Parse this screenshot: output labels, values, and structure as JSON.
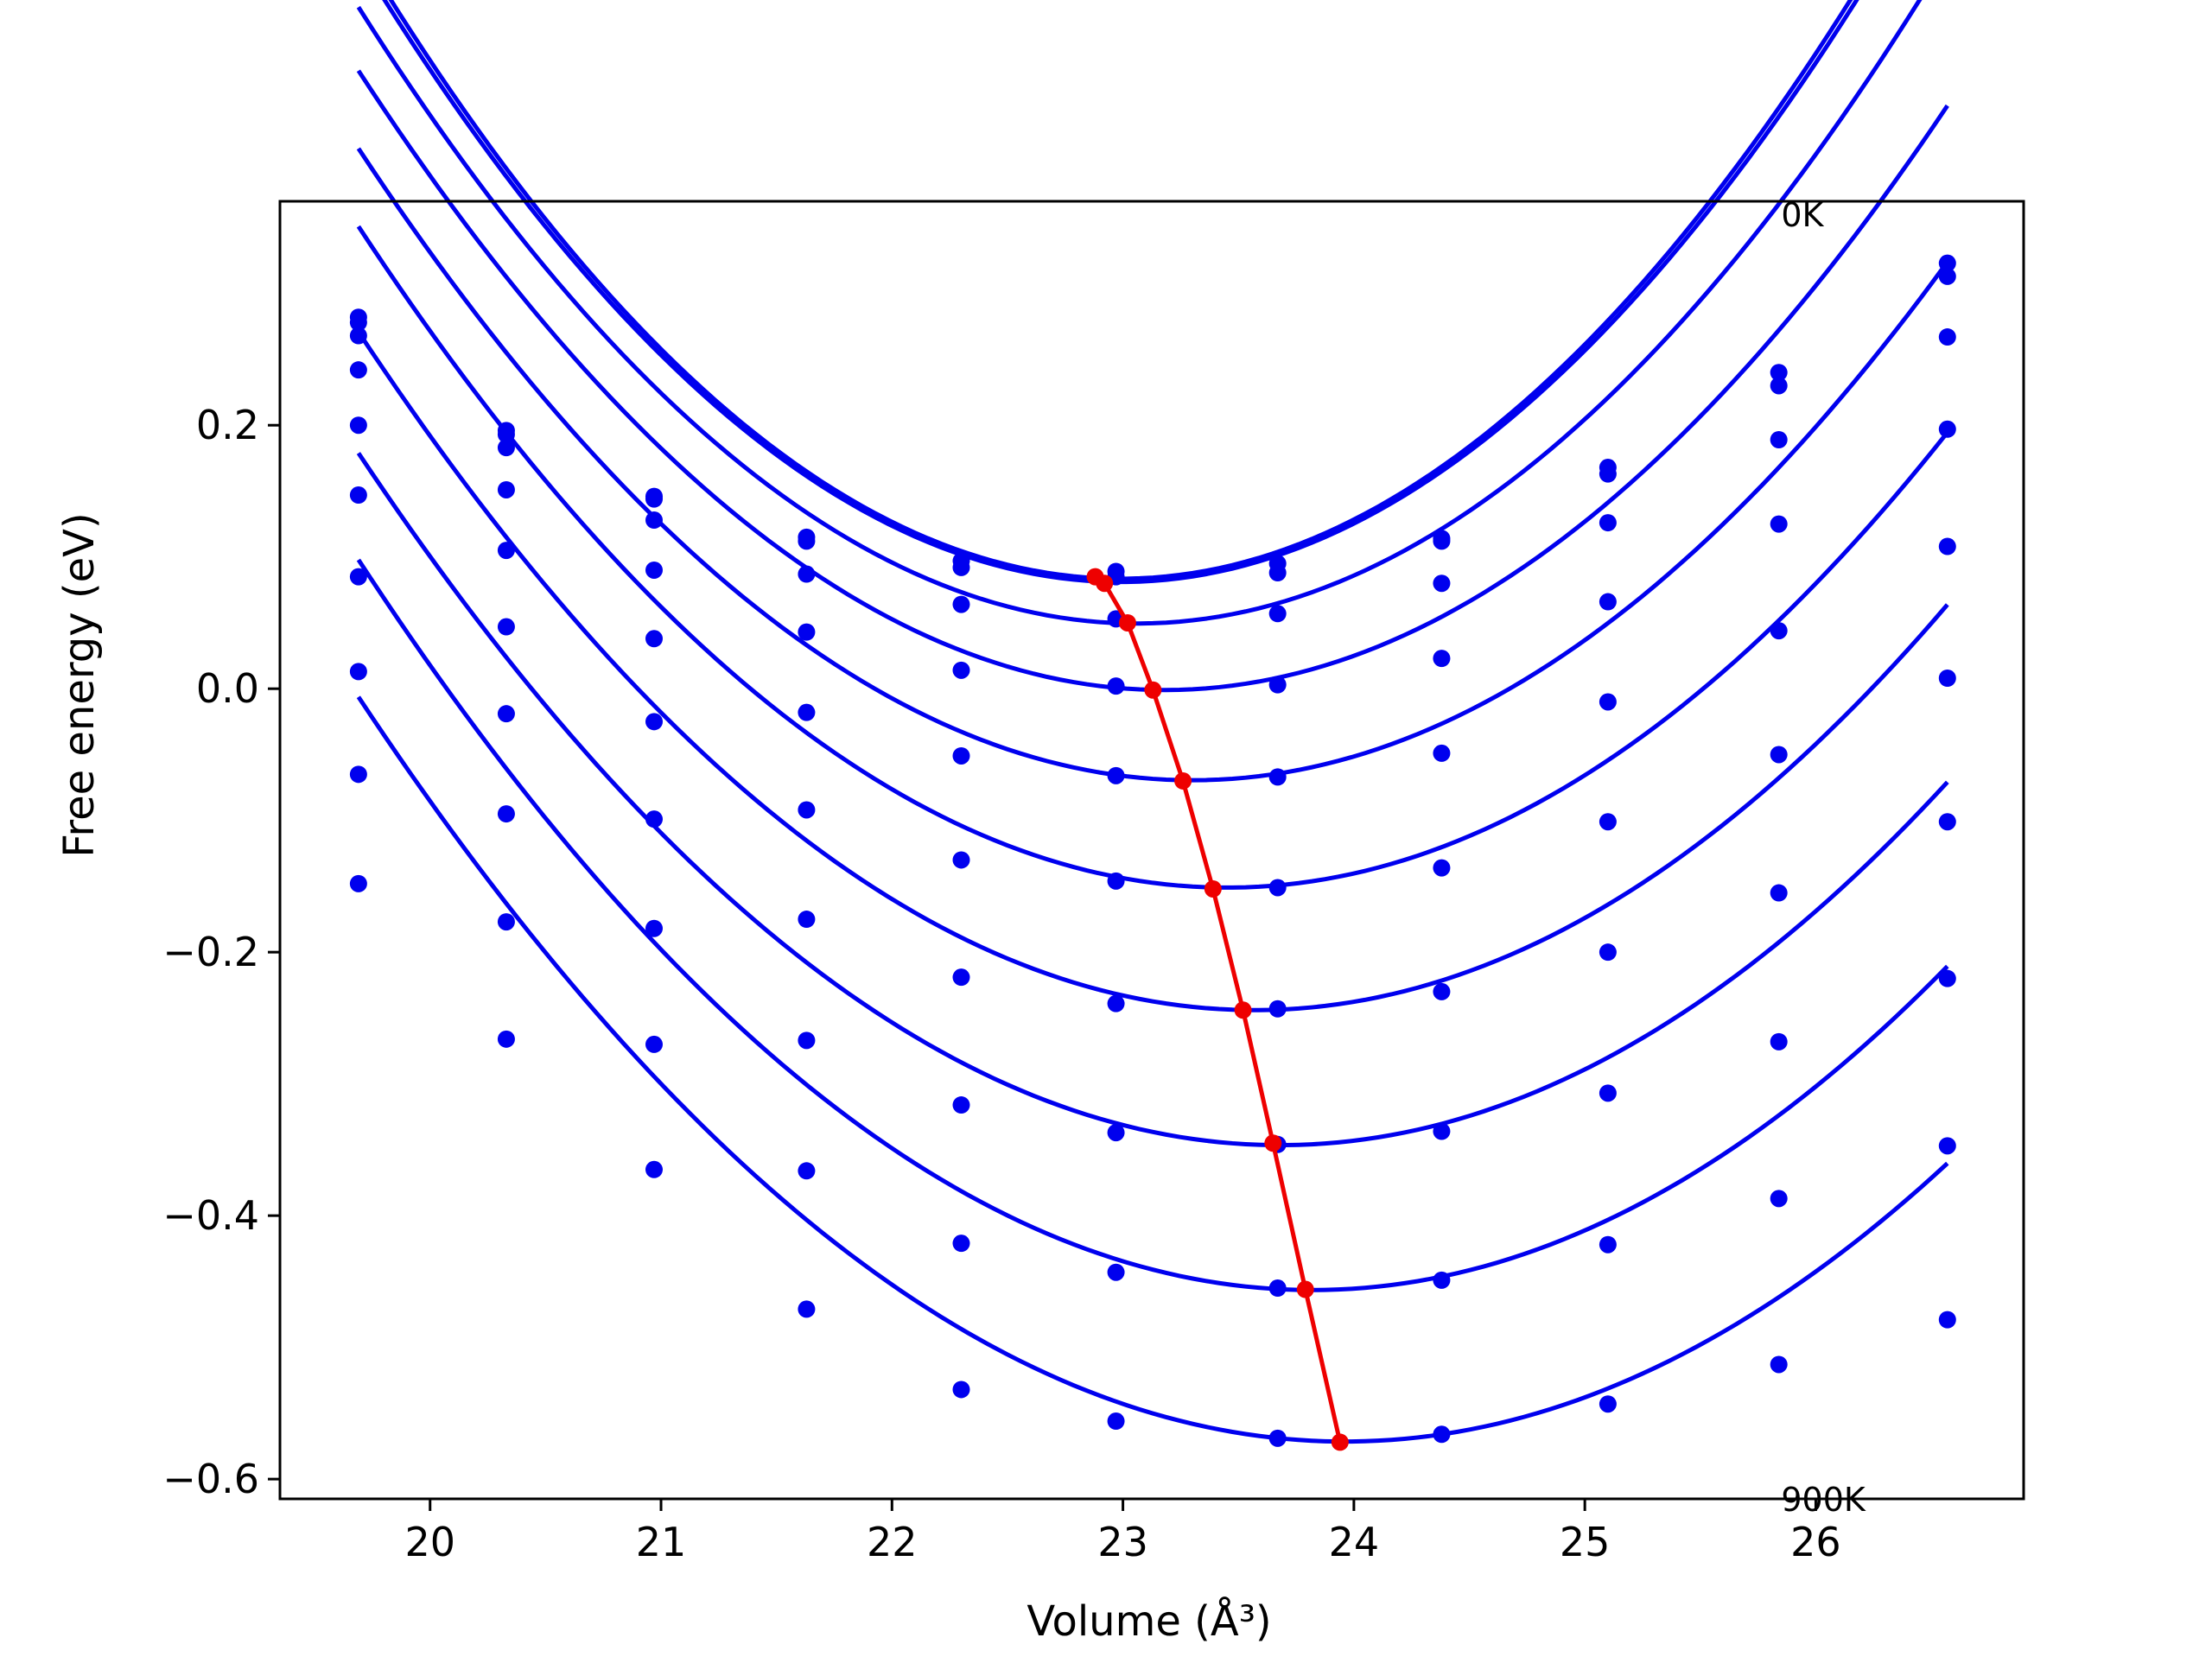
{
  "chart_data": {
    "type": "line",
    "xlabel": "Volume (Å³)",
    "ylabel": "Free energy (eV)",
    "xlim": [
      19.35,
      26.9
    ],
    "ylim": [
      -0.615,
      0.37
    ],
    "x_ticks": [
      {
        "value": 20,
        "label": "20"
      },
      {
        "value": 21,
        "label": "21"
      },
      {
        "value": 22,
        "label": "22"
      },
      {
        "value": 23,
        "label": "23"
      },
      {
        "value": 24,
        "label": "24"
      },
      {
        "value": 25,
        "label": "25"
      },
      {
        "value": 26,
        "label": "26"
      }
    ],
    "y_ticks": [
      {
        "value": 0.2,
        "label": "0.2"
      },
      {
        "value": 0.0,
        "label": "0.0"
      },
      {
        "value": -0.2,
        "label": "−0.2"
      },
      {
        "value": -0.4,
        "label": "−0.4"
      },
      {
        "value": -0.6,
        "label": "−0.6"
      }
    ],
    "grid": false,
    "annotations": [
      {
        "text": "0K",
        "x": 25.85,
        "y": 0.36
      },
      {
        "text": "900K",
        "x": 25.85,
        "y": -0.615
      }
    ],
    "volumes": [
      19.69,
      20.33,
      20.97,
      21.63,
      22.3,
      22.97,
      23.67,
      24.38,
      25.1,
      25.84,
      26.57
    ],
    "series": [
      {
        "values": [
          0.282,
          0.196,
          0.146,
          0.115,
          0.097,
          0.089,
          0.095,
          0.114,
          0.168,
          0.24,
          0.323
        ],
        "fit": {
          "a": 0.044,
          "b": 22.99,
          "c": 0.0835
        }
      },
      {
        "values": [
          0.278,
          0.193,
          0.144,
          0.112,
          0.092,
          0.085,
          0.088,
          0.112,
          0.163,
          0.23,
          0.313
        ],
        "fit": {
          "a": 0.0435,
          "b": 22.99,
          "c": 0.081
        }
      },
      {
        "values": [
          0.268,
          0.183,
          0.128,
          0.087,
          0.064,
          0.053,
          0.057,
          0.08,
          0.126,
          0.189,
          0.267
        ],
        "fit": {
          "a": 0.0412,
          "b": 23.06,
          "c": 0.0495
        }
      },
      {
        "values": [
          0.242,
          0.151,
          0.09,
          0.043,
          0.014,
          0.002,
          0.003,
          0.023,
          0.066,
          0.125,
          0.197
        ],
        "fit": {
          "a": 0.0386,
          "b": 23.18,
          "c": -0.001
        }
      },
      {
        "values": [
          0.2,
          0.105,
          0.038,
          -0.018,
          -0.051,
          -0.066,
          -0.067,
          -0.049,
          -0.01,
          0.044,
          0.108
        ],
        "fit": {
          "a": 0.0368,
          "b": 23.3,
          "c": -0.0695
        }
      },
      {
        "values": [
          0.147,
          0.047,
          -0.025,
          -0.092,
          -0.13,
          -0.146,
          -0.151,
          -0.136,
          -0.101,
          -0.05,
          0.008
        ],
        "fit": {
          "a": 0.0355,
          "b": 23.45,
          "c": -0.151
        }
      },
      {
        "values": [
          0.085,
          -0.019,
          -0.099,
          -0.175,
          -0.219,
          -0.239,
          -0.243,
          -0.23,
          -0.2,
          -0.155,
          -0.101
        ],
        "fit": {
          "a": 0.0342,
          "b": 23.57,
          "c": -0.244
        }
      },
      {
        "values": [
          0.013,
          -0.095,
          -0.182,
          -0.267,
          -0.316,
          -0.337,
          -0.346,
          -0.336,
          -0.307,
          -0.268,
          -0.22
        ],
        "fit": {
          "a": 0.033,
          "b": 23.68,
          "c": -0.3465
        }
      },
      {
        "values": [
          -0.065,
          -0.177,
          -0.27,
          -0.366,
          -0.421,
          -0.443,
          -0.455,
          -0.449,
          -0.422,
          -0.387,
          -0.347
        ],
        "fit": {
          "a": 0.0325,
          "b": 23.82,
          "c": -0.4565
        }
      },
      {
        "values": [
          -0.148,
          -0.266,
          -0.365,
          -0.471,
          -0.532,
          -0.556,
          -0.569,
          -0.566,
          -0.543,
          -0.513,
          -0.479
        ],
        "fit": {
          "a": 0.031,
          "b": 23.96,
          "c": -0.5715
        }
      }
    ],
    "minima_line": {
      "x": [
        22.88,
        22.92,
        23.02,
        23.13,
        23.26,
        23.39,
        23.52,
        23.65,
        23.79,
        23.94
      ],
      "y": [
        0.085,
        0.08,
        0.05,
        -0.001,
        -0.07,
        -0.152,
        -0.244,
        -0.345,
        -0.456,
        -0.572
      ]
    },
    "colors": {
      "series": "#0000ee",
      "minima": "#ee0000",
      "axes": "#000000"
    }
  }
}
